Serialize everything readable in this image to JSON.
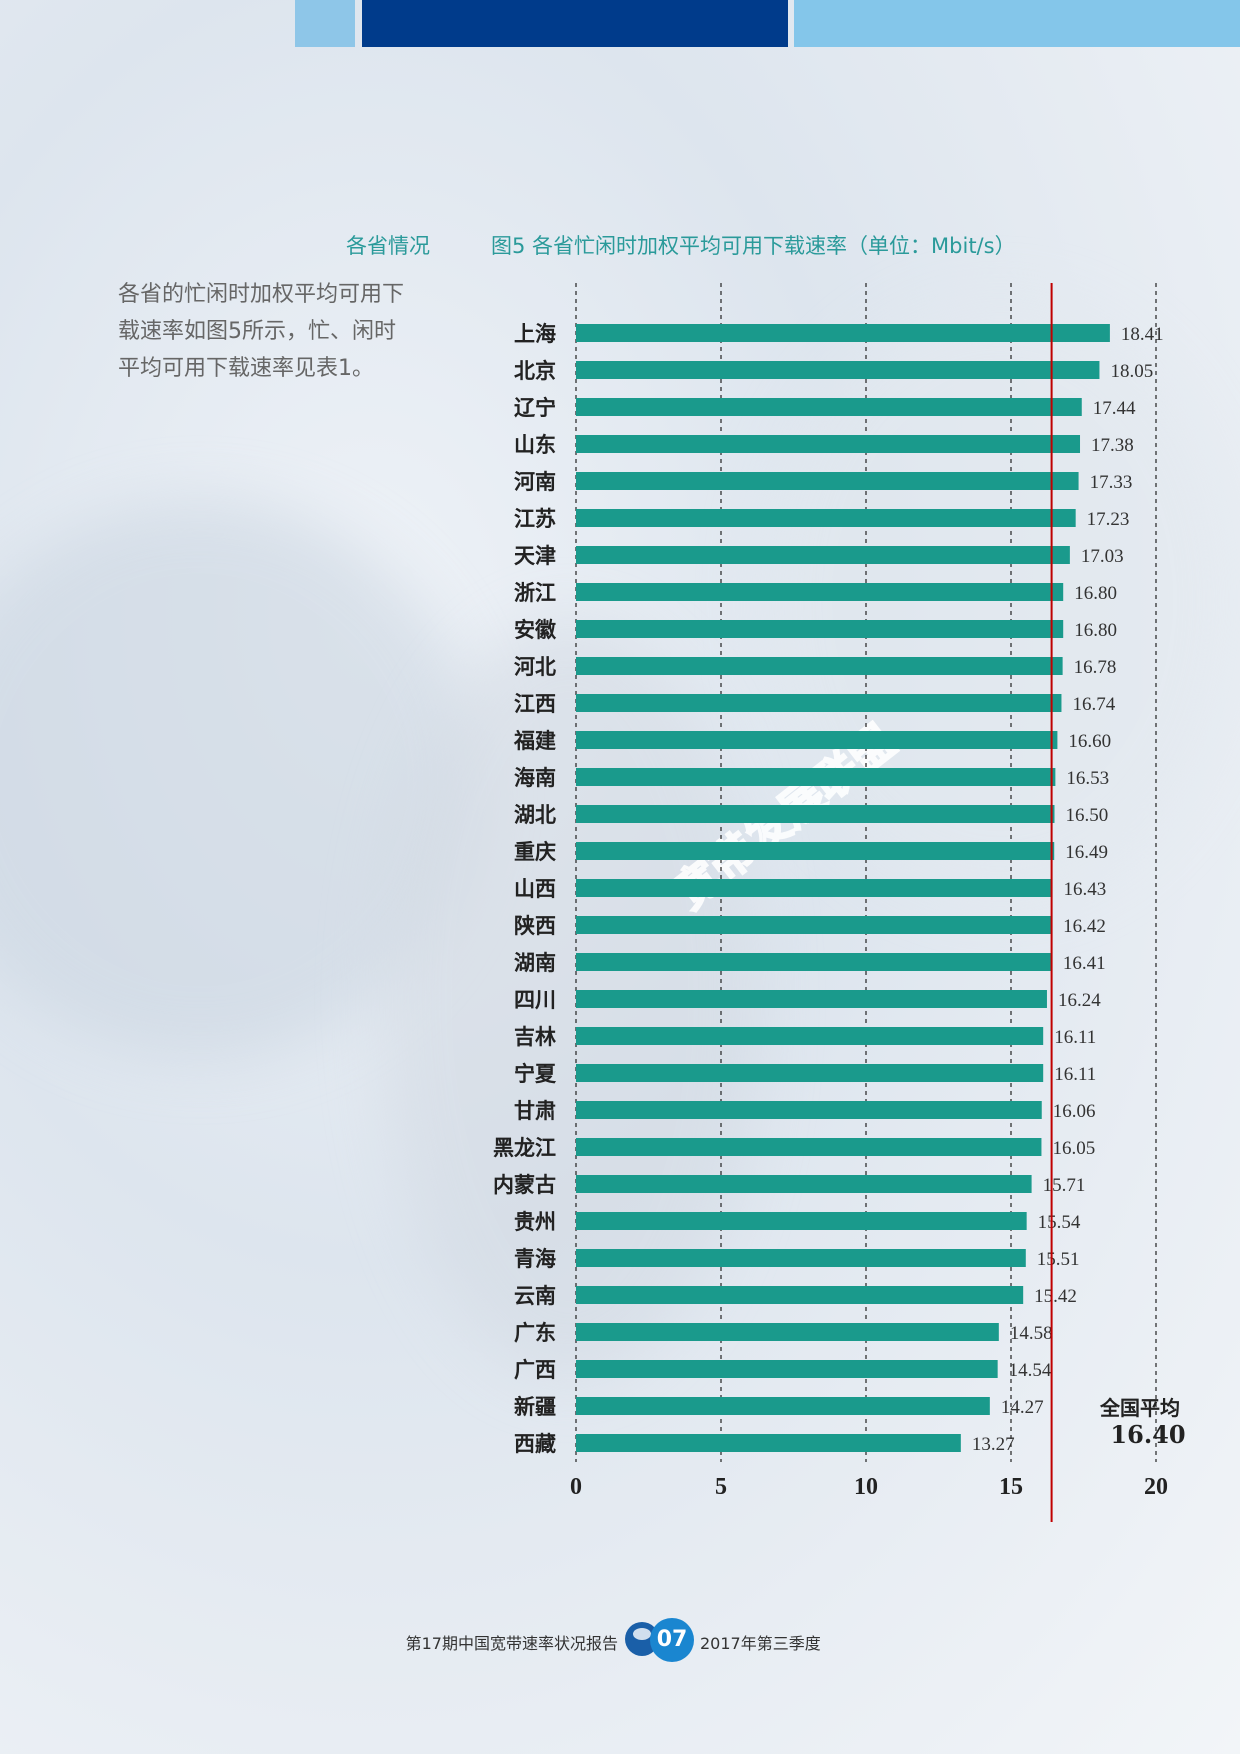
{
  "section_heading": "各省情况",
  "intro_lines": [
    "各省的忙闲时加权平均可用下",
    "载速率如图5所示，忙、闲时",
    "平均可用下载速率见表1。"
  ],
  "chart_title": "图5 各省忙闲时加权平均可用下载速率（单位：Mbit/s）",
  "chart_data": {
    "type": "bar",
    "orientation": "horizontal",
    "title": "图5 各省忙闲时加权平均可用下载速率（单位：Mbit/s）",
    "unit": "Mbit/s",
    "xlim": [
      0,
      20
    ],
    "xticks": [
      0,
      5,
      10,
      15,
      20
    ],
    "grid": "vertical dashed",
    "categories": [
      "上海",
      "北京",
      "辽宁",
      "山东",
      "河南",
      "江苏",
      "天津",
      "浙江",
      "安徽",
      "河北",
      "江西",
      "福建",
      "海南",
      "湖北",
      "重庆",
      "山西",
      "陕西",
      "湖南",
      "四川",
      "吉林",
      "宁夏",
      "甘肃",
      "黑龙江",
      "内蒙古",
      "贵州",
      "青海",
      "云南",
      "广东",
      "广西",
      "新疆",
      "西藏"
    ],
    "values": [
      18.41,
      18.05,
      17.44,
      17.38,
      17.33,
      17.23,
      17.03,
      16.8,
      16.8,
      16.78,
      16.74,
      16.6,
      16.53,
      16.5,
      16.49,
      16.43,
      16.42,
      16.41,
      16.24,
      16.11,
      16.11,
      16.06,
      16.05,
      15.71,
      15.54,
      15.51,
      15.42,
      14.58,
      14.54,
      14.27,
      13.27
    ],
    "value_labels": [
      "18.41",
      "18.05",
      "17.44",
      "17.38",
      "17.33",
      "17.23",
      "17.03",
      "16.80",
      "16.80",
      "16.78",
      "16.74",
      "16.60",
      "16.53",
      "16.50",
      "16.49",
      "16.43",
      "16.42",
      "16.41",
      "16.24",
      "16.11",
      "16.11",
      "16.06",
      "16.05",
      "15.71",
      "15.54",
      "15.51",
      "15.42",
      "14.58",
      "14.54",
      "14.27",
      "13.27"
    ],
    "reference_line": {
      "value": 16.4,
      "label": "全国平均",
      "value_label": "16.40"
    },
    "bar_color": "#1a9a8c",
    "reference_color": "#c00000"
  },
  "footer": {
    "left": "第17期中国宽带速率状况报告",
    "page": "07",
    "right": "2017年第三季度"
  },
  "watermark": "宽带发展联盟"
}
